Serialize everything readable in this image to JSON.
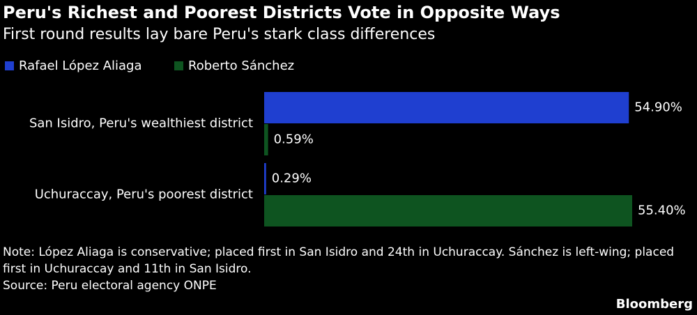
{
  "chart_data": {
    "type": "bar",
    "orientation": "horizontal",
    "title": "Peru's Richest and Poorest Districts Vote in Opposite Ways",
    "subtitle": "First round results lay bare Peru's stark class differences",
    "categories": [
      "San Isidro, Peru's wealthiest district",
      "Uchuraccay, Peru's poorest district"
    ],
    "series": [
      {
        "name": "Rafael López Aliaga",
        "color": "#1f3fd0",
        "values": [
          54.9,
          0.29
        ],
        "value_labels": [
          "54.90%",
          "0.29%"
        ]
      },
      {
        "name": "Roberto Sánchez",
        "color": "#0e5420",
        "values": [
          0.59,
          55.4
        ],
        "value_labels": [
          "0.59%",
          "55.40%"
        ]
      }
    ],
    "note": "Note: López Aliaga is conservative; placed first in San Isidro and 24th in Uchuraccay. Sánchez is left-wing; placed first in Uchuraccay and 11th in San Isidro.",
    "source": "Source: Peru electoral agency ONPE",
    "brand": "Bloomberg"
  }
}
